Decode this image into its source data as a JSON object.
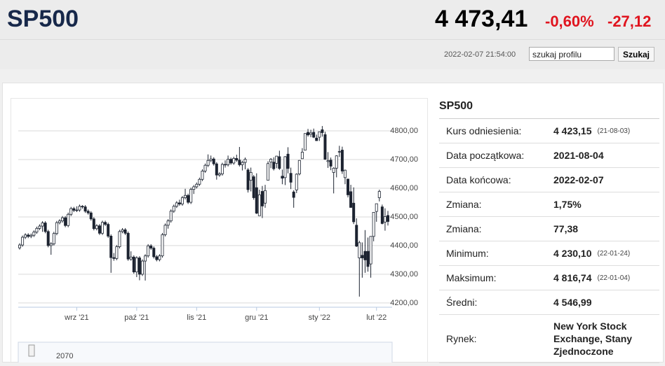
{
  "header": {
    "title": "SP500",
    "price": "4 473,41",
    "change_pct": "-0,60%",
    "change_abs": "-27,12",
    "timestamp": "2022-02-07 21:54:00",
    "search_placeholder": "szukaj profilu",
    "search_button": "Szukaj"
  },
  "chart_data": {
    "type": "candlestick",
    "categories": [
      null,
      null,
      null,
      null,
      null,
      null,
      null,
      null,
      null,
      null,
      null,
      null,
      null,
      null,
      null,
      null,
      null,
      null,
      null,
      null,
      "wrz '21",
      null,
      null,
      null,
      null,
      null,
      null,
      null,
      null,
      null,
      null,
      null,
      null,
      null,
      null,
      null,
      null,
      null,
      null,
      null,
      null,
      "paź '21",
      null,
      null,
      null,
      null,
      null,
      null,
      null,
      null,
      null,
      null,
      null,
      null,
      null,
      null,
      null,
      null,
      null,
      null,
      null,
      null,
      "lis '21",
      null,
      null,
      null,
      null,
      null,
      null,
      null,
      null,
      null,
      null,
      null,
      null,
      null,
      null,
      null,
      null,
      null,
      null,
      null,
      null,
      "gru '21",
      null,
      null,
      null,
      null,
      null,
      null,
      null,
      null,
      null,
      null,
      null,
      null,
      null,
      null,
      null,
      null,
      null,
      null,
      null,
      null,
      null,
      "sty '22",
      null,
      null,
      null,
      null,
      null,
      null,
      null,
      null,
      null,
      null,
      null,
      null,
      null,
      null,
      null,
      null,
      null,
      null,
      null,
      "lut '22",
      null,
      null,
      null,
      null
    ],
    "open": [
      4392,
      4402,
      4429,
      4437,
      4432,
      4436,
      4447,
      4460,
      4468,
      4479,
      4449,
      4400,
      4406,
      4442,
      4480,
      4486,
      4497,
      4470,
      4509,
      4529,
      4523,
      4524,
      4537,
      4535,
      4520,
      4514,
      4493,
      4459,
      4469,
      4443,
      4481,
      4474,
      4433,
      4358,
      4355,
      4396,
      4449,
      4455,
      4443,
      4353,
      4360,
      4308,
      4357,
      4300,
      4346,
      4364,
      4399,
      4391,
      4361,
      4351,
      4364,
      4438,
      4471,
      4486,
      4520,
      4537,
      4549,
      4545,
      4567,
      4575,
      4551,
      4596,
      4605,
      4614,
      4631,
      4660,
      4680,
      4697,
      4702,
      4685,
      4646,
      4650,
      4683,
      4682,
      4701,
      4688,
      4704,
      4698,
      4682,
      4690,
      4664,
      4628,
      4640,
      4602,
      4504,
      4589,
      4548,
      4628,
      4691,
      4691,
      4687,
      4710,
      4642,
      4637,
      4719,
      4652,
      4587,
      4594,
      4650,
      4703,
      4733,
      4795,
      4788,
      4795,
      4775,
      4778,
      4804,
      4787,
      4693,
      4698,
      4655,
      4670,
      4728,
      4733,
      4637,
      4632,
      4588,
      4548,
      4471,
      4357,
      4366,
      4380,
      4380,
      4336,
      4432,
      4519,
      4567,
      4535,
      4482,
      4505
    ],
    "high": [
      4408,
      4435,
      4443,
      4443,
      4442,
      4453,
      4466,
      4474,
      4485,
      4485,
      4455,
      4412,
      4448,
      4486,
      4492,
      4503,
      4503,
      4515,
      4535,
      4535,
      4537,
      4543,
      4541,
      4541,
      4526,
      4520,
      4499,
      4475,
      4475,
      4487,
      4487,
      4480,
      4439,
      4374,
      4402,
      4455,
      4461,
      4461,
      4449,
      4380,
      4366,
      4363,
      4363,
      4352,
      4370,
      4405,
      4405,
      4397,
      4367,
      4370,
      4444,
      4477,
      4492,
      4526,
      4543,
      4555,
      4560,
      4573,
      4598,
      4581,
      4602,
      4611,
      4620,
      4637,
      4666,
      4686,
      4718,
      4714,
      4708,
      4691,
      4656,
      4689,
      4697,
      4714,
      4707,
      4710,
      4717,
      4744,
      4696,
      4707,
      4670,
      4672,
      4646,
      4652,
      4595,
      4608,
      4612,
      4694,
      4705,
      4708,
      4713,
      4731,
      4665,
      4712,
      4743,
      4672,
      4593,
      4652,
      4698,
      4740,
      4792,
      4807,
      4804,
      4808,
      4787,
      4797,
      4817,
      4797,
      4726,
      4707,
      4673,
      4715,
      4748,
      4745,
      4665,
      4632,
      4612,
      4603,
      4495,
      4417,
      4411,
      4454,
      4428,
      4433,
      4516,
      4546,
      4595,
      4543,
      4530,
      4521
    ],
    "low": [
      4386,
      4396,
      4423,
      4426,
      4426,
      4430,
      4441,
      4454,
      4448,
      4443,
      4394,
      4368,
      4400,
      4436,
      4474,
      4480,
      4464,
      4464,
      4503,
      4517,
      4517,
      4518,
      4529,
      4514,
      4508,
      4487,
      4453,
      4453,
      4437,
      4437,
      4468,
      4427,
      4305,
      4347,
      4349,
      4390,
      4443,
      4437,
      4347,
      4347,
      4302,
      4290,
      4279,
      4294,
      4278,
      4358,
      4385,
      4355,
      4345,
      4345,
      4358,
      4432,
      4459,
      4480,
      4514,
      4531,
      4539,
      4539,
      4561,
      4545,
      4545,
      4580,
      4599,
      4608,
      4625,
      4654,
      4674,
      4691,
      4679,
      4630,
      4640,
      4644,
      4672,
      4676,
      4682,
      4682,
      4692,
      4676,
      4662,
      4666,
      4585,
      4589,
      4560,
      4510,
      4504,
      4496,
      4532,
      4628,
      4670,
      4662,
      4670,
      4664,
      4614,
      4611,
      4652,
      4597,
      4532,
      4583,
      4645,
      4703,
      4733,
      4780,
      4778,
      4775,
      4765,
      4765,
      4780,
      4699,
      4671,
      4663,
      4582,
      4638,
      4709,
      4650,
      4614,
      4568,
      4532,
      4475,
      4395,
      4222,
      4288,
      4305,
      4309,
      4288,
      4415,
      4483,
      4554,
      4474,
      4452,
      4470
    ],
    "close": [
      4402,
      4429,
      4437,
      4432,
      4436,
      4447,
      4460,
      4468,
      4479,
      4449,
      4400,
      4406,
      4442,
      4480,
      4486,
      4497,
      4470,
      4509,
      4529,
      4523,
      4524,
      4537,
      4535,
      4520,
      4514,
      4493,
      4459,
      4469,
      4443,
      4481,
      4474,
      4433,
      4358,
      4355,
      4396,
      4449,
      4455,
      4443,
      4353,
      4360,
      4308,
      4357,
      4300,
      4346,
      4364,
      4399,
      4391,
      4361,
      4351,
      4364,
      4438,
      4471,
      4486,
      4520,
      4537,
      4549,
      4545,
      4567,
      4575,
      4551,
      4596,
      4605,
      4614,
      4631,
      4660,
      4680,
      4697,
      4702,
      4685,
      4646,
      4650,
      4683,
      4682,
      4701,
      4688,
      4704,
      4698,
      4682,
      4690,
      4701,
      4595,
      4655,
      4567,
      4513,
      4577,
      4538,
      4592,
      4686,
      4701,
      4668,
      4712,
      4669,
      4635,
      4710,
      4669,
      4621,
      4568,
      4649,
      4697,
      4726,
      4791,
      4786,
      4793,
      4778,
      4766,
      4797,
      4794,
      4701,
      4696,
      4677,
      4670,
      4713,
      4726,
      4660,
      4663,
      4577,
      4533,
      4483,
      4398,
      4410,
      4357,
      4350,
      4327,
      4432,
      4516,
      4546,
      4589,
      4477,
      4501,
      4484
    ],
    "ylim": [
      4185,
      4888
    ],
    "yticks": [
      {
        "value": 4200,
        "label": "4200,00"
      },
      {
        "value": 4300,
        "label": "4300,00"
      },
      {
        "value": 4400,
        "label": "4400,00"
      },
      {
        "value": 4500,
        "label": "4500,00"
      },
      {
        "value": 4600,
        "label": "4600,00"
      },
      {
        "value": 4700,
        "label": "4700,00"
      },
      {
        "value": 4800,
        "label": "4800,00"
      }
    ],
    "grid": true,
    "up_color": "#ffffff",
    "down_color": "#1c2330",
    "navigator_label": "2070"
  },
  "info": {
    "title": "SP500",
    "rows": [
      {
        "label": "Kurs odniesienia:",
        "value": "4 423,15",
        "note": "(21-08-03)"
      },
      {
        "label": "Data początkowa:",
        "value": "2021-08-04"
      },
      {
        "label": "Data końcowa:",
        "value": "2022-02-07"
      },
      {
        "label": "Zmiana:",
        "value": "1,75%"
      },
      {
        "label": "Zmiana:",
        "value": "77,38"
      },
      {
        "label": "Minimum:",
        "value": "4 230,10",
        "note": "(22-01-24)"
      },
      {
        "label": "Maksimum:",
        "value": "4 816,74",
        "note": "(22-01-04)"
      },
      {
        "label": "Średni:",
        "value": "4 546,99"
      },
      {
        "label": "Rynek:",
        "value": "New York Stock Exchange, Stany Zjednoczone"
      }
    ]
  }
}
